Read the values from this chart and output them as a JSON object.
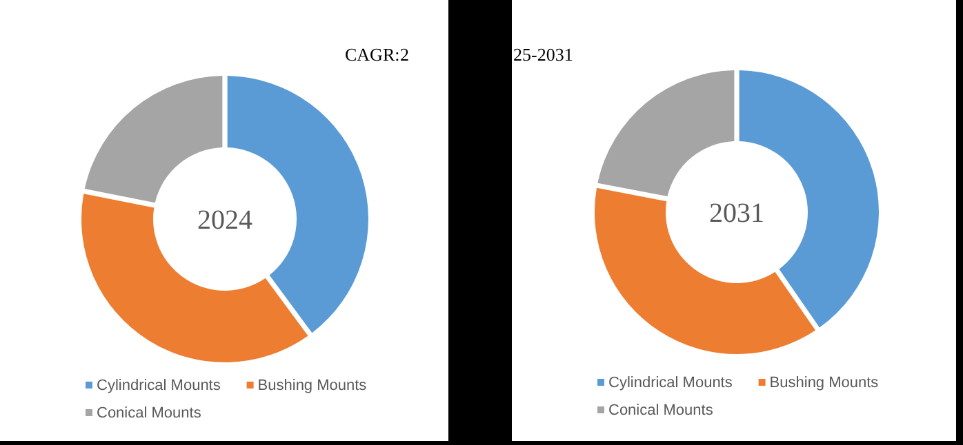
{
  "chart_data": [
    {
      "type": "donut",
      "title": "2024",
      "categories": [
        "Cylindrical Mounts",
        "Bushing Mounts",
        "Conical Mounts"
      ],
      "values": [
        40.0,
        38.3,
        21.7
      ],
      "colors": [
        "#5b9bd5",
        "#ed7d31",
        "#a5a5a5"
      ],
      "legend": "bottom",
      "annotations": [
        "CAGR:",
        "2"
      ]
    },
    {
      "type": "donut",
      "title": "2031",
      "categories": [
        "Cylindrical Mounts",
        "Bushing Mounts",
        "Conical Mounts"
      ],
      "values": [
        40.5,
        37.7,
        21.8
      ],
      "colors": [
        "#5b9bd5",
        "#ed7d31",
        "#a5a5a5"
      ],
      "legend": "bottom",
      "annotations": [
        "25-2031"
      ]
    }
  ]
}
